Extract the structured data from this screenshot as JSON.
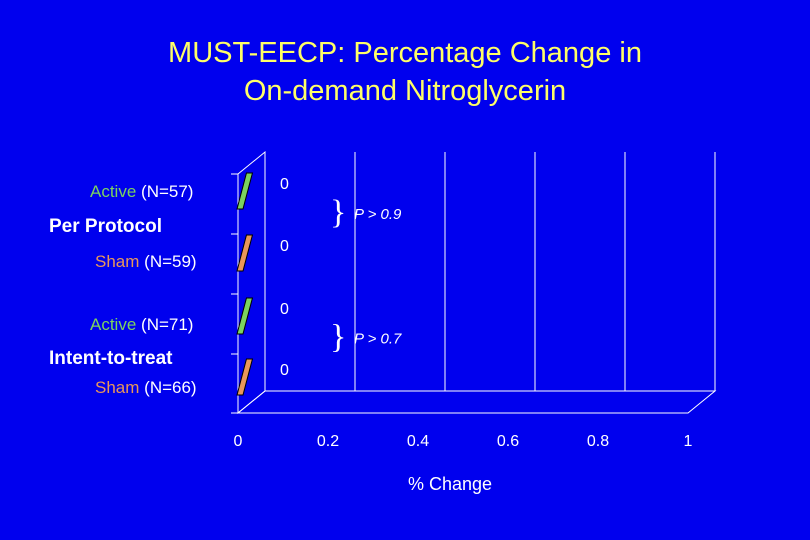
{
  "title_line1": "MUST-EECP:  Percentage Change in",
  "title_line2": "On-demand Nitroglycerin",
  "chart_data": {
    "type": "bar",
    "orientation": "horizontal",
    "groups": [
      {
        "name": "Per Protocol",
        "bars": [
          {
            "arm": "Active",
            "n": "(N=57)",
            "value": 0
          },
          {
            "arm": "Sham",
            "n": "(N=59)",
            "value": 0
          }
        ],
        "pvalue": "P > 0.9"
      },
      {
        "name": "Intent-to-treat",
        "bars": [
          {
            "arm": "Active",
            "n": "(N=71)",
            "value": 0
          },
          {
            "arm": "Sham",
            "n": "(N=66)",
            "value": 0
          }
        ],
        "pvalue": "P > 0.7"
      }
    ],
    "xlabel": "% Change",
    "xlim": [
      0,
      1
    ],
    "xticks": [
      "0",
      "0.2",
      "0.4",
      "0.6",
      "0.8",
      "1"
    ],
    "data_labels": [
      "0",
      "0",
      "0",
      "0"
    ],
    "grid": "vertical"
  },
  "colors": {
    "background": "#0000ee",
    "title": "#ffff66",
    "active": "#7cd35f",
    "sham": "#e8975a"
  }
}
